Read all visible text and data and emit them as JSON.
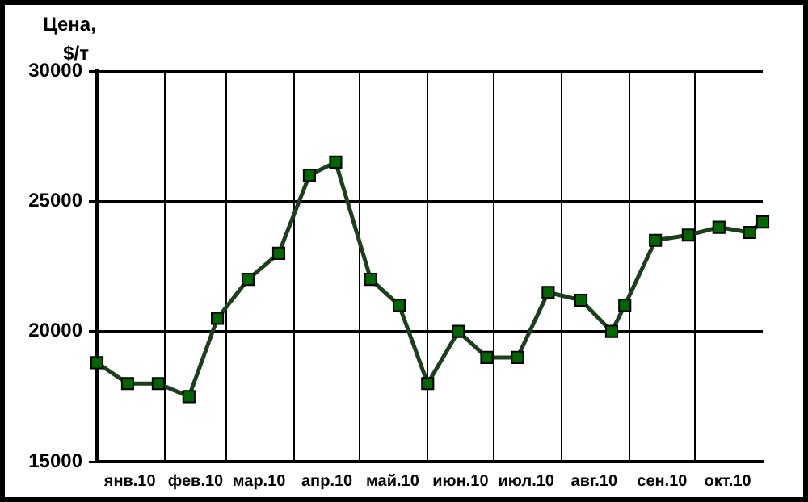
{
  "chart_data": {
    "type": "line",
    "ylabel": "Цена,\n$/т",
    "x": [
      "2010-01-01",
      "2010-01-15",
      "2010-01-29",
      "2010-02-12",
      "2010-02-25",
      "2010-03-11",
      "2010-03-25",
      "2010-04-08",
      "2010-04-20",
      "2010-05-06",
      "2010-05-19",
      "2010-06-01",
      "2010-06-15",
      "2010-06-28",
      "2010-07-12",
      "2010-07-26",
      "2010-08-10",
      "2010-08-24",
      "2010-08-30",
      "2010-09-13",
      "2010-09-28",
      "2010-10-12",
      "2010-10-26",
      "2010-11-01"
    ],
    "series": [
      {
        "color": "#006600",
        "values": [
          18800,
          18000,
          18000,
          17500,
          20500,
          22000,
          23000,
          26000,
          26500,
          22000,
          21000,
          18000,
          20000,
          19000,
          19000,
          21500,
          21200,
          20000,
          21000,
          23500,
          23700,
          24000,
          23800,
          24200
        ]
      }
    ],
    "xlim": [
      "2010-01-01",
      "2010-11-01"
    ],
    "xticks": [
      {
        "value": "2010-02-01",
        "label": null
      },
      {
        "value": "2010-03-01",
        "label": null
      },
      {
        "value": "2010-04-01",
        "label": null
      },
      {
        "value": "2010-05-01",
        "label": null
      },
      {
        "value": "2010-06-01",
        "label": null
      },
      {
        "value": "2010-07-01",
        "label": null
      },
      {
        "value": "2010-08-01",
        "label": null
      },
      {
        "value": "2010-09-01",
        "label": null
      },
      {
        "value": "2010-10-01",
        "label": null
      },
      {
        "value": "2010-01-16",
        "label": "янв.10"
      },
      {
        "value": "2010-02-15",
        "label": "фев.10"
      },
      {
        "value": "2010-03-16",
        "label": "мар.10"
      },
      {
        "value": "2010-04-16",
        "label": "апр.10"
      },
      {
        "value": "2010-05-16",
        "label": "май.10"
      },
      {
        "value": "2010-06-16",
        "label": "июн.10"
      },
      {
        "value": "2010-07-16",
        "label": "июл.10"
      },
      {
        "value": "2010-08-16",
        "label": "авг.10"
      },
      {
        "value": "2010-09-16",
        "label": "сен.10"
      },
      {
        "value": "2010-10-16",
        "label": "окт.10"
      }
    ],
    "ylim": [
      15000,
      30000
    ],
    "yticks": [
      15000,
      20000,
      25000,
      30000
    ],
    "grid": true,
    "marker": "square"
  }
}
